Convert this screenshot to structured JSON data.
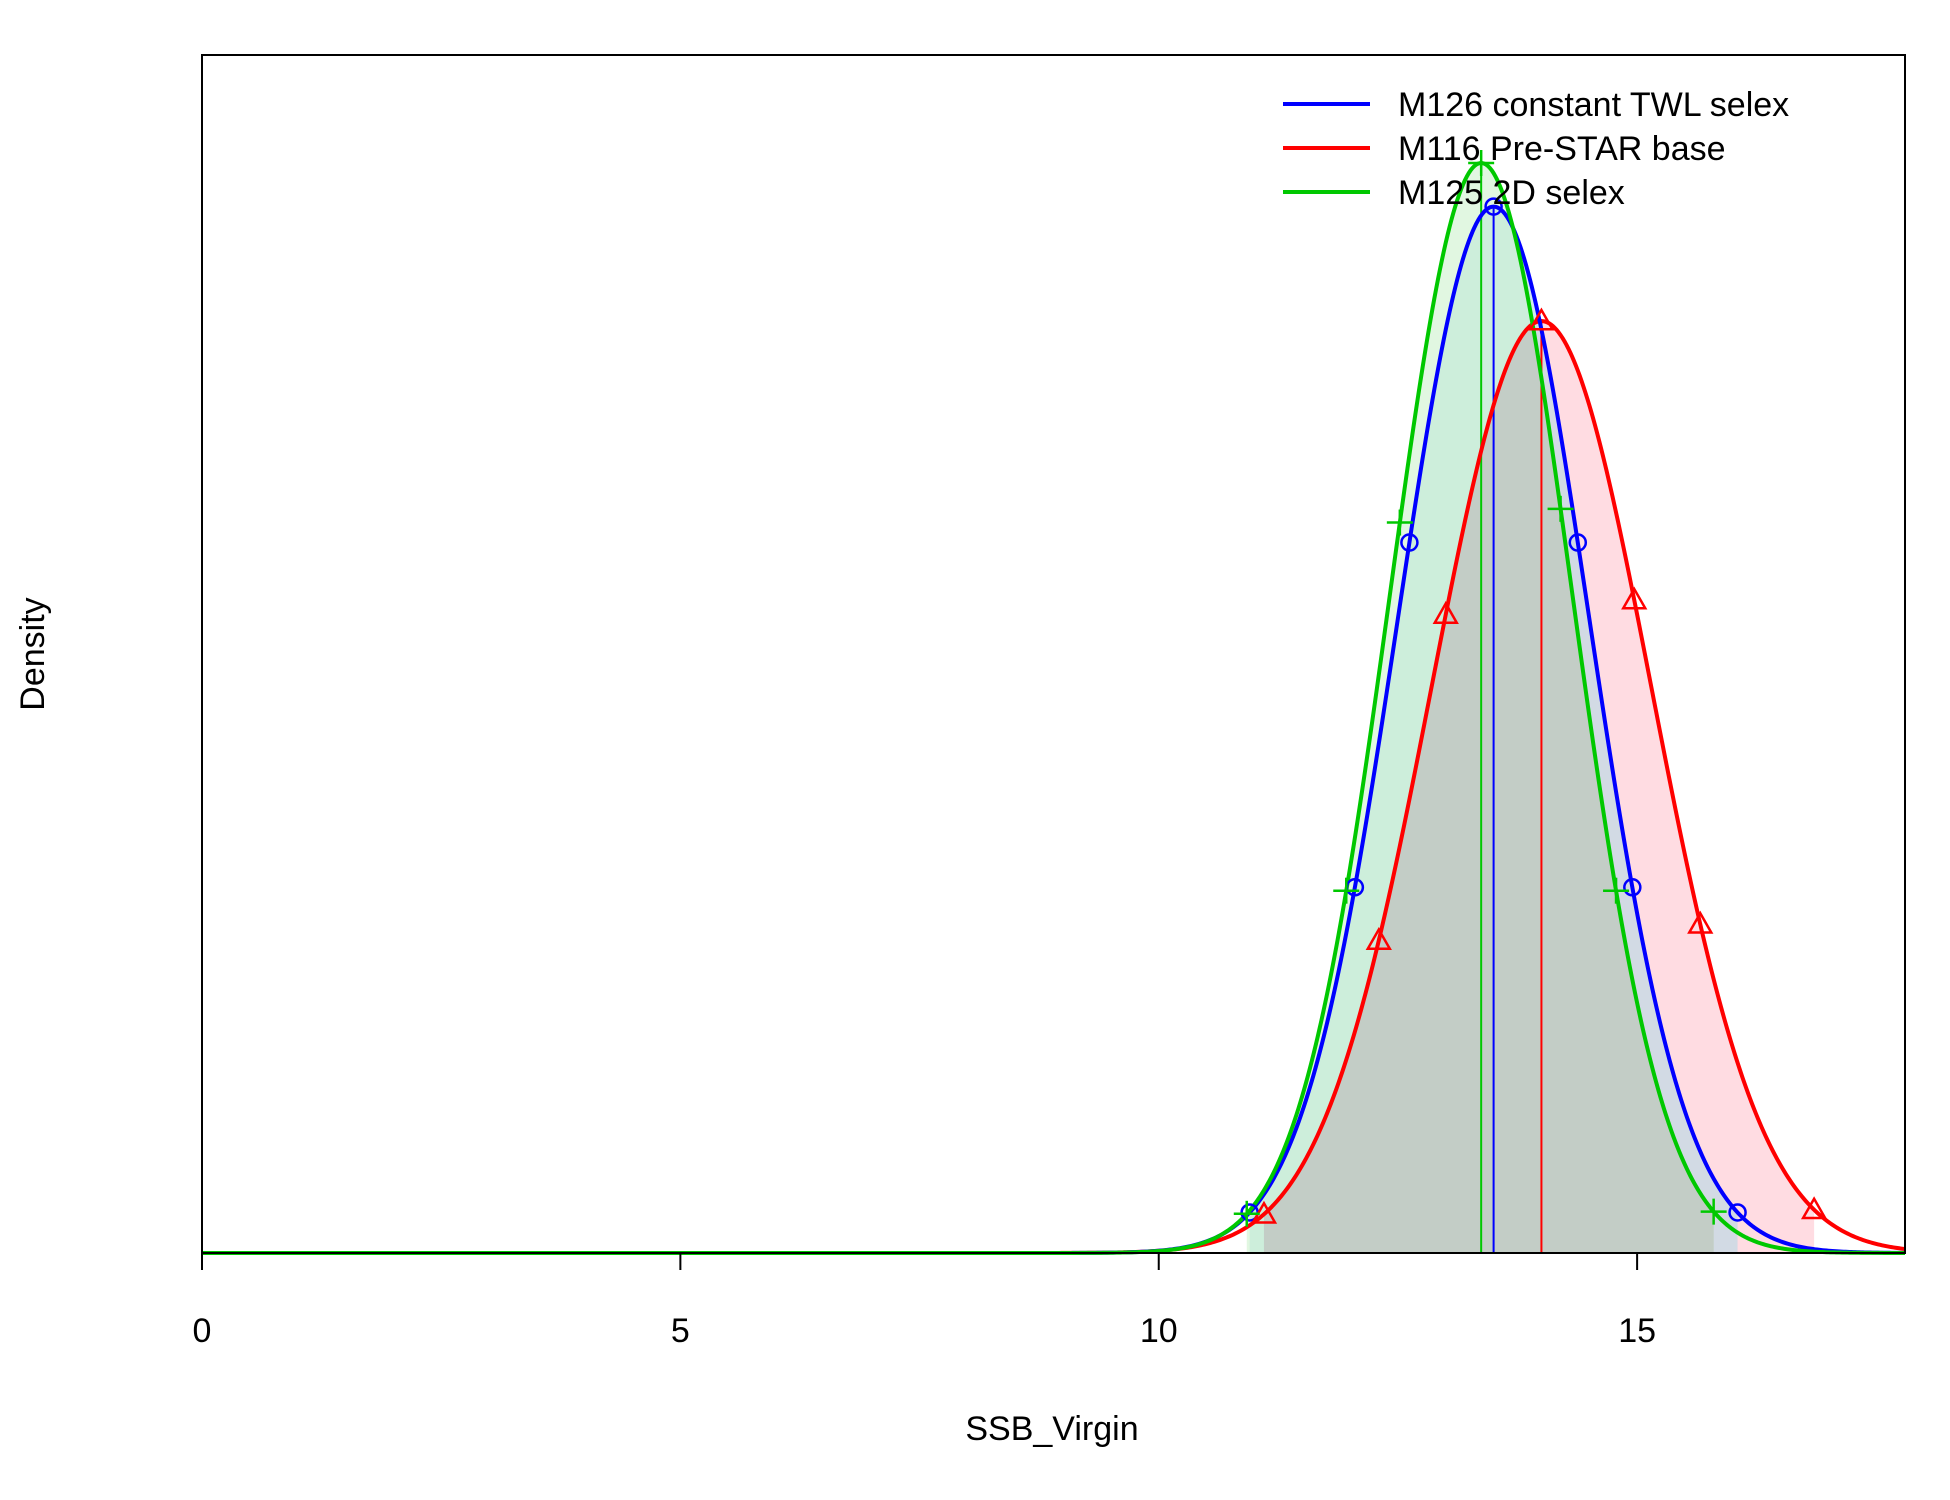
{
  "chart_data": {
    "type": "area",
    "xlabel": "SSB_Virgin",
    "ylabel": "Density",
    "xlim": [
      0,
      17.8
    ],
    "ylim": [
      0,
      1
    ],
    "x_ticks": [
      0,
      5,
      10,
      15
    ],
    "x_tick_labels": [
      "0",
      "5",
      "10",
      "15"
    ],
    "y_ticks_shown": false,
    "legend_position": "top-right",
    "legend_box": false,
    "shaded_region": "5%–95% interval under each curve",
    "series": [
      {
        "name": "M126 constant TWL selex",
        "color": "#0000ff",
        "fill": "#add8e6",
        "marker": "circle",
        "mean": 13.5,
        "sd": 1.0,
        "peak_density": 0.96,
        "median_line_x": 13.5,
        "interval_5_95": [
          10.95,
          16.05
        ],
        "marker_x": [
          10.95,
          12.05,
          12.62,
          13.5,
          14.38,
          14.95,
          16.05
        ]
      },
      {
        "name": "M116 Pre-STAR base",
        "color": "#ff0000",
        "fill": "#ffc0cb",
        "marker": "triangle",
        "mean": 14.0,
        "sd": 1.15,
        "peak_density": 0.855,
        "median_line_x": 14.0,
        "interval_5_95": [
          11.1,
          16.85
        ],
        "marker_x": [
          11.1,
          12.3,
          13.0,
          14.0,
          14.97,
          15.66,
          16.85
        ]
      },
      {
        "name": "M125 2D selex",
        "color": "#00c800",
        "fill": "#c8f0c8",
        "marker": "plus",
        "mean": 13.37,
        "sd": 0.95,
        "peak_density": 1.0,
        "median_line_x": 13.37,
        "interval_5_95": [
          10.92,
          15.8
        ],
        "marker_x": [
          10.92,
          11.96,
          12.52,
          13.37,
          14.2,
          14.78,
          15.8
        ]
      }
    ]
  }
}
